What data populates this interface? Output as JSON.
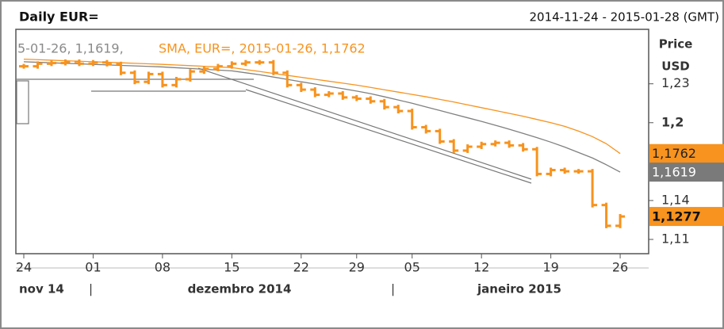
{
  "chart_data": {
    "type": "ohlc",
    "title": "Daily EUR=",
    "subtitle": "2014-11-24 - 2015-01-28 (GMT)",
    "y_label": [
      "Price",
      "USD"
    ],
    "legend_text": [
      "5-01-26, 1,1619,",
      "SMA, EUR=, 2015-01-26, 1,1762"
    ],
    "month_labels": [
      "nov 14",
      "dezembro 2014",
      "janeiro 2015"
    ],
    "categories": [
      "24",
      null,
      null,
      null,
      null,
      "01",
      null,
      null,
      null,
      null,
      "08",
      null,
      null,
      null,
      null,
      "15",
      null,
      null,
      null,
      null,
      "22",
      null,
      null,
      null,
      "29",
      null,
      null,
      null,
      "05",
      null,
      null,
      null,
      null,
      "12",
      null,
      null,
      null,
      null,
      "19",
      null,
      null,
      null,
      null,
      "26"
    ],
    "ylim": [
      1.099,
      1.272
    ],
    "yticks": [
      {
        "value": 1.11,
        "label": "1,11"
      },
      {
        "value": 1.14,
        "label": "1,14"
      },
      {
        "value": 1.2,
        "label": "1,2"
      },
      {
        "value": 1.23,
        "label": "1,23"
      }
    ],
    "series": [
      {
        "color": "#f7931e",
        "style": "bars",
        "last_label": "1,1277",
        "values": [
          1.2435,
          1.2455,
          1.246,
          1.247,
          1.2455,
          1.2465,
          1.2452,
          1.2385,
          1.2315,
          1.2375,
          1.229,
          1.2335,
          1.2395,
          1.2415,
          1.2435,
          1.2455,
          1.2465,
          1.2465,
          1.2385,
          1.229,
          1.2255,
          1.2215,
          1.2225,
          1.2195,
          1.2185,
          1.2165,
          1.212,
          1.209,
          1.1965,
          1.1935,
          1.1855,
          1.1785,
          1.1815,
          1.1835,
          1.1845,
          1.1825,
          1.1795,
          1.1605,
          1.1635,
          1.1625,
          1.1625,
          1.1365,
          1.1205,
          1.1277
        ]
      },
      {
        "color": "#f7931e",
        "style": "line",
        "last_label": "1,1762",
        "values": [
          1.249,
          1.2486,
          1.2482,
          1.2478,
          1.2474,
          1.247,
          1.2466,
          1.2462,
          1.2458,
          1.2454,
          1.245,
          1.2445,
          1.244,
          1.2435,
          1.243,
          1.2425,
          1.241,
          1.2395,
          1.238,
          1.2365,
          1.235,
          1.2335,
          1.232,
          1.2305,
          1.229,
          1.2272,
          1.2254,
          1.2236,
          1.2218,
          1.22,
          1.218,
          1.216,
          1.2138,
          1.2116,
          1.2094,
          1.2072,
          1.205,
          1.2025,
          1.2,
          1.1972,
          1.1935,
          1.1893,
          1.1838,
          1.1762
        ]
      },
      {
        "color": "#808080",
        "style": "line",
        "last_label": "1,1619",
        "values": [
          1.247,
          1.2466,
          1.2462,
          1.2458,
          1.2454,
          1.245,
          1.2446,
          1.2442,
          1.2438,
          1.2434,
          1.243,
          1.2424,
          1.2418,
          1.2412,
          1.2406,
          1.24,
          1.2385,
          1.237,
          1.2352,
          1.2334,
          1.2316,
          1.2298,
          1.228,
          1.2262,
          1.2244,
          1.2224,
          1.22,
          1.2175,
          1.215,
          1.2122,
          1.2094,
          1.2066,
          1.2038,
          1.201,
          1.198,
          1.195,
          1.1918,
          1.1885,
          1.185,
          1.1812,
          1.177,
          1.1728,
          1.1676,
          1.1619
        ]
      }
    ]
  }
}
